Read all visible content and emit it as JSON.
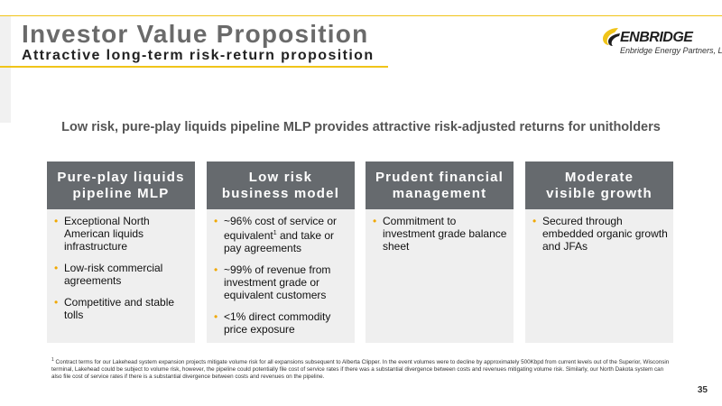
{
  "header": {
    "title": "Investor Value Proposition",
    "subtitle": "Attractive long-term risk-return proposition"
  },
  "logo": {
    "name": "ENBRIDGE",
    "tagline": "Enbridge Energy Partners, L.P.",
    "accent_color": "#f0c419"
  },
  "headline": "Low risk, pure-play liquids pipeline MLP provides attractive risk-adjusted returns for unitholders",
  "columns": [
    {
      "title_line1": "Pure-play liquids",
      "title_line2": "pipeline MLP",
      "bullets": [
        "Exceptional North American liquids infrastructure",
        "Low-risk commercial agreements",
        "Competitive and stable tolls"
      ]
    },
    {
      "title_line1": "Low risk",
      "title_line2": "business model",
      "bullets": [
        {
          "pre": "~96% cost of service or equivalent",
          "sup": "1",
          "post": " and take or pay agreements"
        },
        "~99% of revenue from investment grade or equivalent customers",
        "<1% direct commodity price exposure"
      ]
    },
    {
      "title_line1": "Prudent financial",
      "title_line2": "management",
      "bullets": [
        "Commitment to investment grade balance sheet"
      ]
    },
    {
      "title_line1": "Moderate",
      "title_line2": "visible growth",
      "bullets": [
        "Secured through embedded organic growth and JFAs"
      ]
    }
  ],
  "footnote": {
    "marker": "1",
    "text": "Contract terms for our Lakehead system expansion projects mitigate volume risk for all expansions subsequent to Alberta Clipper. In the event volumes were to decline by approximately 500Kbpd from current levels out of the Superior, Wisconsin terminal, Lakehead could be subject to volume risk, however, the pipeline could potentially file cost of service rates if there was a substantial divergence between costs and revenues mitigating volume risk. Similarly, our North Dakota system can also file cost of service rates if there is a substantial divergence between costs and revenues on the pipeline."
  },
  "page_number": "35",
  "colors": {
    "accent": "#f0c419",
    "bullet": "#f0a800",
    "column_header": "#666a6e",
    "column_body": "#efefef"
  }
}
